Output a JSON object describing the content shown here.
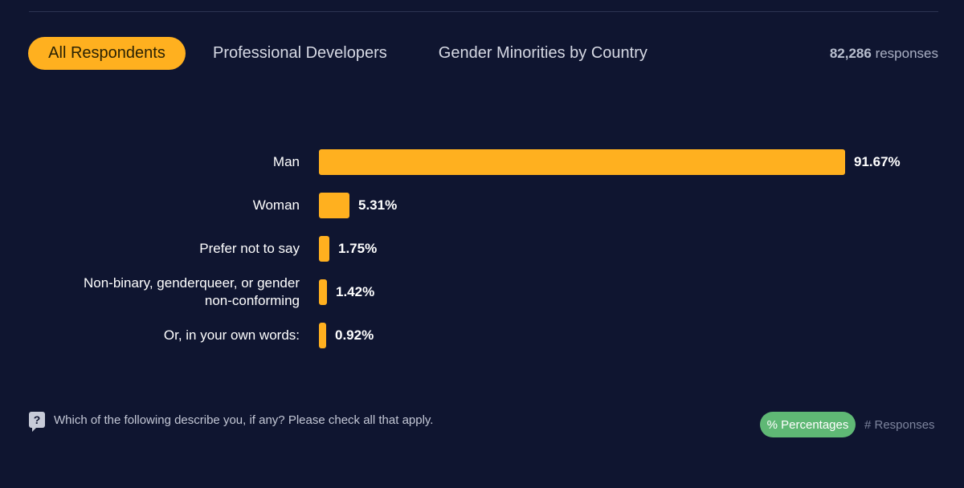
{
  "tabs": [
    {
      "label": "All Respondents",
      "active": true
    },
    {
      "label": "Professional Developers",
      "active": false
    },
    {
      "label": "Gender Minorities by Country",
      "active": false
    }
  ],
  "response_count": "82,286",
  "response_suffix": "responses",
  "question": "Which of the following describe you, if any? Please check all that apply.",
  "toggle": {
    "percentages": "% Percentages",
    "responses": "# Responses"
  },
  "colors": {
    "bar": "#ffb01f",
    "background": "#0f1530",
    "active_toggle": "#5fb875"
  },
  "chart_data": {
    "type": "bar",
    "orientation": "horizontal",
    "title": "",
    "categories": [
      [
        "Man"
      ],
      [
        "Woman"
      ],
      [
        "Prefer not to say"
      ],
      [
        "Non-binary, genderqueer, or gender",
        "non-conforming"
      ],
      [
        "Or, in your own words:"
      ]
    ],
    "values": [
      91.67,
      5.31,
      1.75,
      1.42,
      0.92
    ],
    "value_labels": [
      "91.67%",
      "5.31%",
      "1.75%",
      "1.42%",
      "0.92%"
    ],
    "xlim": [
      0,
      91.67
    ],
    "grid": false,
    "legend": "none"
  }
}
